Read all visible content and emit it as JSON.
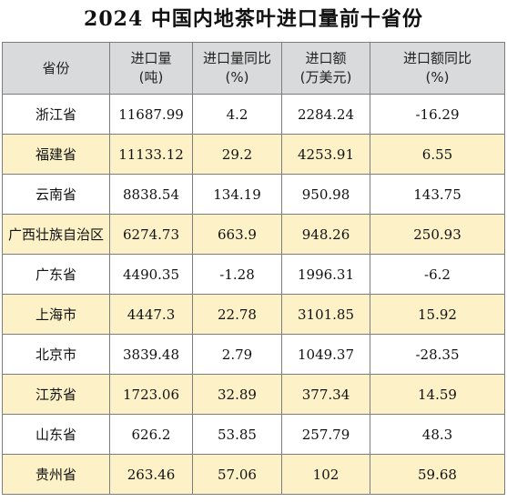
{
  "title": "2024 中国内地茶叶进口量前十省份",
  "headers": {
    "province": "省份",
    "volume": [
      "进口量",
      "(吨)"
    ],
    "volume_yoy": [
      "进口量同比",
      "(%)"
    ],
    "value": [
      "进口额",
      "(万美元)"
    ],
    "value_yoy": [
      "进口额同比",
      "(%)"
    ]
  },
  "rows": [
    {
      "province": "浙江省",
      "volume": "11687.99",
      "volume_yoy": "4.2",
      "value": "2284.24",
      "value_yoy": "-16.29"
    },
    {
      "province": "福建省",
      "volume": "11133.12",
      "volume_yoy": "29.2",
      "value": "4253.91",
      "value_yoy": "6.55"
    },
    {
      "province": "云南省",
      "volume": "8838.54",
      "volume_yoy": "134.19",
      "value": "950.98",
      "value_yoy": "143.75"
    },
    {
      "province": "广西壮族自治区",
      "volume": "6274.73",
      "volume_yoy": "663.9",
      "value": "948.26",
      "value_yoy": "250.93"
    },
    {
      "province": "广东省",
      "volume": "4490.35",
      "volume_yoy": "-1.28",
      "value": "1996.31",
      "value_yoy": "-6.2"
    },
    {
      "province": "上海市",
      "volume": "4447.3",
      "volume_yoy": "22.78",
      "value": "3101.85",
      "value_yoy": "15.92"
    },
    {
      "province": "北京市",
      "volume": "3839.48",
      "volume_yoy": "2.79",
      "value": "1049.37",
      "value_yoy": "-28.35"
    },
    {
      "province": "江苏省",
      "volume": "1723.06",
      "volume_yoy": "32.89",
      "value": "377.34",
      "value_yoy": "14.59"
    },
    {
      "province": "山东省",
      "volume": "626.2",
      "volume_yoy": "53.85",
      "value": "257.79",
      "value_yoy": "48.3"
    },
    {
      "province": "贵州省",
      "volume": "263.46",
      "volume_yoy": "57.06",
      "value": "102",
      "value_yoy": "59.68"
    }
  ],
  "colors": {
    "header_bg": "#d9dadb",
    "alt_row_bg": "#fdf1c8",
    "row_bg": "#ffffff",
    "border": "#7d7d7d"
  }
}
